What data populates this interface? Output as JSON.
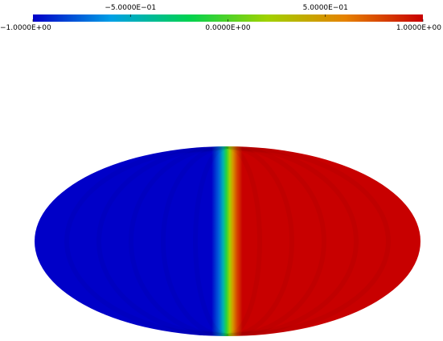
{
  "chart_data": {
    "type": "heatmap",
    "projection": "mollweide",
    "title": "",
    "colorbar": {
      "orientation": "horizontal",
      "placement": "top",
      "range": [
        -1.0,
        1.0
      ],
      "colormap": [
        "#0000c8",
        "#00a0e6",
        "#00d250",
        "#a0d200",
        "#e68200",
        "#c80000"
      ],
      "ticks_top": [
        {
          "value": -0.5,
          "label": "−5.0000E−01"
        },
        {
          "value": 0.5,
          "label": "5.0000E−01"
        }
      ],
      "ticks_bottom": [
        {
          "value": -1.0,
          "label": "−1.0000E+00"
        },
        {
          "value": 0.0,
          "label": "0.0000E+00"
        },
        {
          "value": 1.0,
          "label": "1.0000E+00"
        }
      ]
    },
    "field": {
      "description_values": "negative (~-1) on the western half, positive (~+1) on the eastern half, sharp transition near longitude 0",
      "west_value": -1.0,
      "east_value": 1.0,
      "transition_center_lon": 0,
      "values_across_longitude": [
        {
          "lon": -180,
          "value": -1.0
        },
        {
          "lon": -15,
          "value": -1.0
        },
        {
          "lon": -8,
          "value": -0.75
        },
        {
          "lon": -4,
          "value": -0.45
        },
        {
          "lon": -1,
          "value": -0.1
        },
        {
          "lon": 0,
          "value": 0.0
        },
        {
          "lon": 2,
          "value": 0.2
        },
        {
          "lon": 5,
          "value": 0.5
        },
        {
          "lon": 9,
          "value": 0.8
        },
        {
          "lon": 14,
          "value": 1.0
        },
        {
          "lon": 180,
          "value": 1.0
        }
      ]
    }
  }
}
